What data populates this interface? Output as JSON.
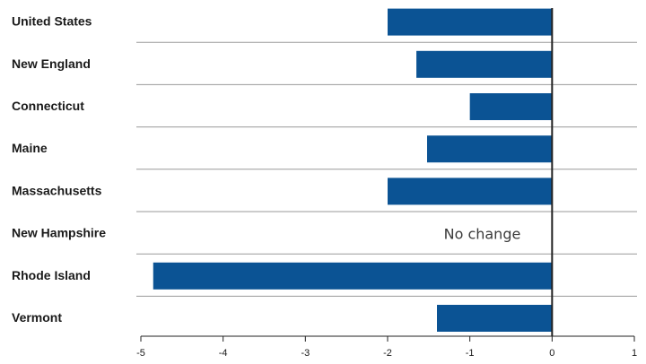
{
  "chart_data": {
    "type": "bar",
    "orientation": "horizontal",
    "categories": [
      "United States",
      "New England",
      "Connecticut",
      "Maine",
      "Massachusetts",
      "New Hampshire",
      "Rhode Island",
      "Vermont"
    ],
    "values": [
      -2.0,
      -1.65,
      -1.0,
      -1.52,
      -2.0,
      0,
      -4.85,
      -1.4
    ],
    "xlim": [
      -5,
      1
    ],
    "xticks": [
      -5,
      -4,
      -3,
      -2,
      -1,
      0,
      1
    ],
    "grid": "horizontal separators between categories",
    "legend": "none",
    "annotations": [
      {
        "category": "New Hampshire",
        "text": "No change"
      }
    ],
    "bar_color": "#0b5394"
  }
}
